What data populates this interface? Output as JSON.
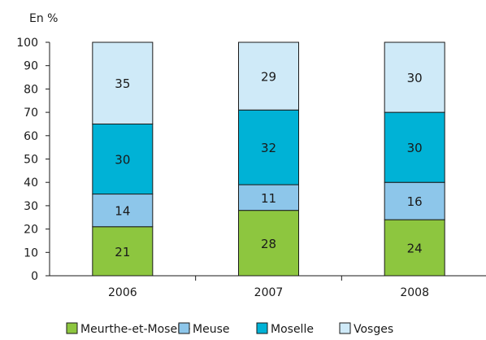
{
  "chart_data": {
    "type": "bar",
    "stacked": true,
    "unit_label": "En %",
    "categories": [
      "2006",
      "2007",
      "2008"
    ],
    "y_ticks": [
      "0",
      "10",
      "20",
      "30",
      "40",
      "50",
      "60",
      "70",
      "80",
      "90",
      "100"
    ],
    "ylim": [
      0,
      100
    ],
    "legend_position": "bottom",
    "series": [
      {
        "name": "Meurthe-et-Moselle",
        "color": "#8dc63f",
        "values": [
          21,
          28,
          24
        ]
      },
      {
        "name": "Meuse",
        "color": "#8dc6ea",
        "values": [
          14,
          11,
          16
        ]
      },
      {
        "name": "Moselle",
        "color": "#00b2d6",
        "values": [
          30,
          32,
          30
        ]
      },
      {
        "name": "Vosges",
        "color": "#cfeaf8",
        "values": [
          35,
          29,
          30
        ]
      }
    ]
  }
}
